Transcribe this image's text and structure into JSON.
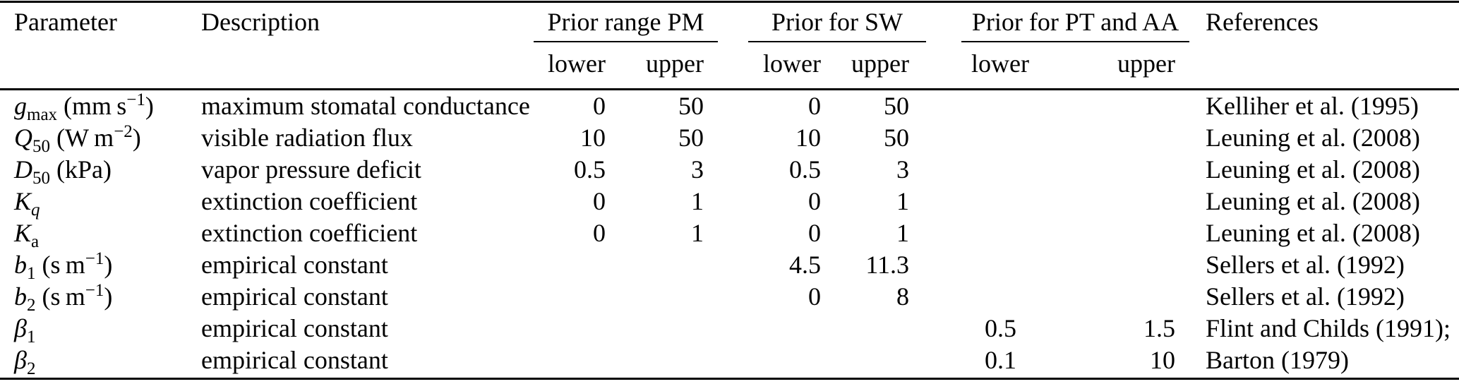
{
  "table": {
    "columns": {
      "parameter": "Parameter",
      "description": "Description",
      "references": "References"
    },
    "groups": [
      {
        "label": "Prior range PM",
        "sub": [
          "lower",
          "upper"
        ]
      },
      {
        "label": "Prior for SW",
        "sub": [
          "lower",
          "upper"
        ]
      },
      {
        "label": "Prior for PT and AA",
        "sub": [
          "lower",
          "upper"
        ]
      }
    ],
    "rows": [
      {
        "param": [
          {
            "t": "g",
            "s": "i"
          },
          {
            "t": "max",
            "s": "sub"
          },
          {
            "t": " (mm s",
            "s": ""
          },
          {
            "t": "−1",
            "s": "sup"
          },
          {
            "t": ")",
            "s": ""
          }
        ],
        "description": "maximum stomatal conductance",
        "pm_lower": "0",
        "pm_upper": "50",
        "sw_lower": "0",
        "sw_upper": "50",
        "pt_lower": "",
        "pt_upper": "",
        "reference": "Kelliher et al. (1995)"
      },
      {
        "param": [
          {
            "t": "Q",
            "s": "i"
          },
          {
            "t": "50",
            "s": "sub"
          },
          {
            "t": " (W m",
            "s": ""
          },
          {
            "t": "−2",
            "s": "sup"
          },
          {
            "t": ")",
            "s": ""
          }
        ],
        "description": "visible radiation flux",
        "pm_lower": "10",
        "pm_upper": "50",
        "sw_lower": "10",
        "sw_upper": "50",
        "pt_lower": "",
        "pt_upper": "",
        "reference": "Leuning et al. (2008)"
      },
      {
        "param": [
          {
            "t": "D",
            "s": "i"
          },
          {
            "t": "50",
            "s": "sub"
          },
          {
            "t": " (kPa)",
            "s": ""
          }
        ],
        "description": "vapor pressure deficit",
        "pm_lower": "0.5",
        "pm_upper": "3",
        "sw_lower": "0.5",
        "sw_upper": "3",
        "pt_lower": "",
        "pt_upper": "",
        "reference": "Leuning et al. (2008)"
      },
      {
        "param": [
          {
            "t": "K",
            "s": "i"
          },
          {
            "t": "q",
            "s": "subi"
          }
        ],
        "description": "extinction coefficient",
        "pm_lower": "0",
        "pm_upper": "1",
        "sw_lower": "0",
        "sw_upper": "1",
        "pt_lower": "",
        "pt_upper": "",
        "reference": "Leuning et al. (2008)"
      },
      {
        "param": [
          {
            "t": "K",
            "s": "i"
          },
          {
            "t": "a",
            "s": "sub"
          }
        ],
        "description": "extinction coefficient",
        "pm_lower": "0",
        "pm_upper": "1",
        "sw_lower": "0",
        "sw_upper": "1",
        "pt_lower": "",
        "pt_upper": "",
        "reference": "Leuning et al. (2008)"
      },
      {
        "param": [
          {
            "t": "b",
            "s": "i"
          },
          {
            "t": "1",
            "s": "sub"
          },
          {
            "t": " (s m",
            "s": ""
          },
          {
            "t": "−1",
            "s": "sup"
          },
          {
            "t": ")",
            "s": ""
          }
        ],
        "description": "empirical constant",
        "pm_lower": "",
        "pm_upper": "",
        "sw_lower": "4.5",
        "sw_upper": "11.3",
        "pt_lower": "",
        "pt_upper": "",
        "reference": "Sellers et al. (1992)"
      },
      {
        "param": [
          {
            "t": "b",
            "s": "i"
          },
          {
            "t": "2",
            "s": "sub"
          },
          {
            "t": " (s m",
            "s": ""
          },
          {
            "t": "−1",
            "s": "sup"
          },
          {
            "t": ")",
            "s": ""
          }
        ],
        "description": "empirical constant",
        "pm_lower": "",
        "pm_upper": "",
        "sw_lower": "0",
        "sw_upper": "8",
        "pt_lower": "",
        "pt_upper": "",
        "reference": "Sellers et al. (1992)"
      },
      {
        "param": [
          {
            "t": "β",
            "s": "i"
          },
          {
            "t": "1",
            "s": "sub"
          }
        ],
        "description": "empirical constant",
        "pm_lower": "",
        "pm_upper": "",
        "sw_lower": "",
        "sw_upper": "",
        "pt_lower": "0.5",
        "pt_upper": "1.5",
        "reference": "Flint and Childs (1991);"
      },
      {
        "param": [
          {
            "t": "β",
            "s": "i"
          },
          {
            "t": "2",
            "s": "sub"
          }
        ],
        "description": "empirical constant",
        "pm_lower": "",
        "pm_upper": "",
        "sw_lower": "",
        "sw_upper": "",
        "pt_lower": "0.1",
        "pt_upper": "10",
        "reference": "Barton (1979)"
      }
    ]
  },
  "colors": {
    "background": "#ffffff",
    "text": "#000000",
    "rule": "#000000"
  }
}
